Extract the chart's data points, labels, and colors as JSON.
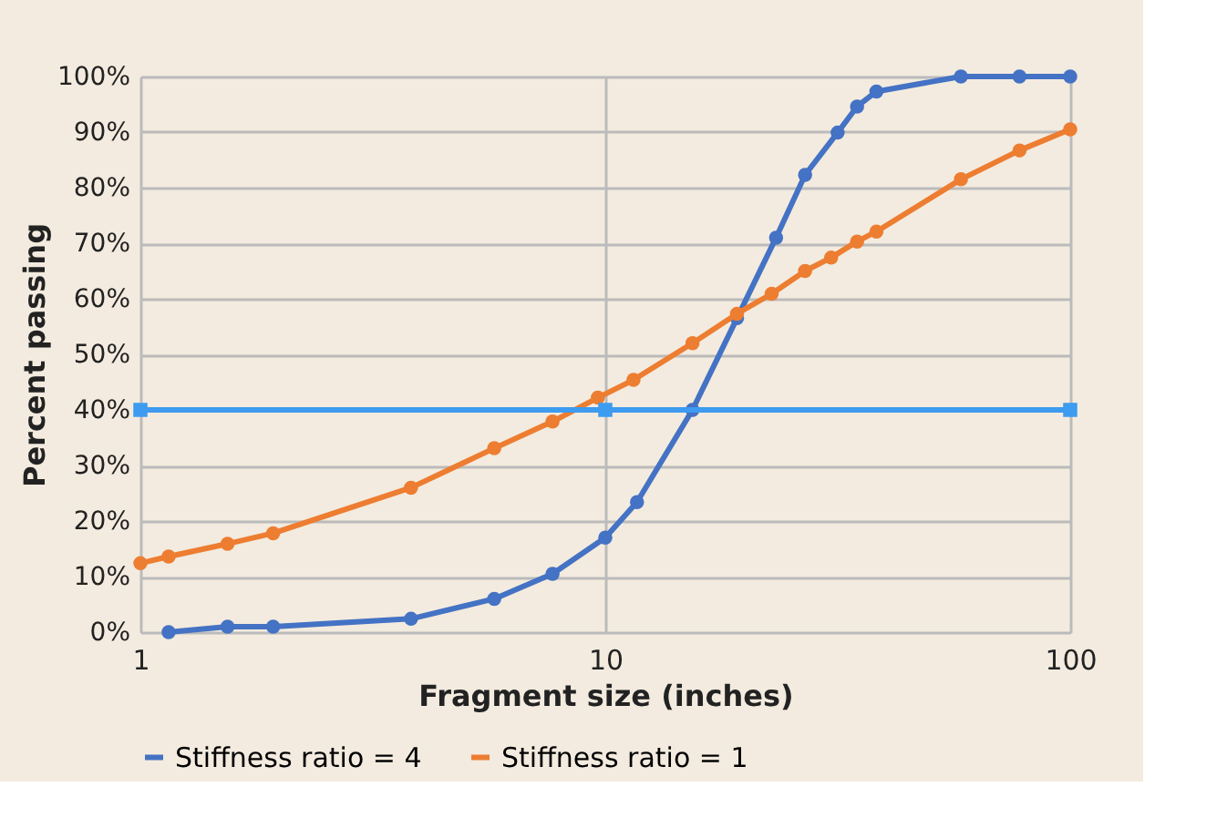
{
  "chart_data": {
    "type": "line",
    "xlabel": "Fragment size (inches)",
    "ylabel": "Percent passing",
    "log": "x",
    "xlim": [
      1,
      100
    ],
    "xticks": [
      1,
      10,
      100
    ],
    "ylim": [
      0,
      100
    ],
    "yticks": [
      {
        "value": 0,
        "label": "0%"
      },
      {
        "value": 10,
        "label": "10%"
      },
      {
        "value": 20,
        "label": "20%"
      },
      {
        "value": 30,
        "label": "30%"
      },
      {
        "value": 40,
        "label": "40%"
      },
      {
        "value": 50,
        "label": "50%"
      },
      {
        "value": 60,
        "label": "60%"
      },
      {
        "value": 70,
        "label": "70%"
      },
      {
        "value": 80,
        "label": "80%"
      },
      {
        "value": 90,
        "label": "90%"
      },
      {
        "value": 100,
        "label": "100%"
      }
    ],
    "grid": true,
    "legend": "bottom",
    "line_style": "solid",
    "series": [
      {
        "name": "Stiffness ratio = 4",
        "color": "#4472c4",
        "marker": "circle",
        "x": [
          1.15,
          1.54,
          1.93,
          3.82,
          5.77,
          7.7,
          10.0,
          11.7,
          15.4,
          19.2,
          23.3,
          26.9,
          31.6,
          34.8,
          38.3,
          58.2,
          77.8,
          100
        ],
        "values": [
          0,
          1,
          1,
          2.4,
          6.0,
          10.5,
          17.0,
          23.4,
          40,
          56.5,
          71,
          82.3,
          89.9,
          94.6,
          97.3,
          100,
          100,
          100
        ]
      },
      {
        "name": "Stiffness ratio = 1",
        "color": "#ed7d31",
        "marker": "circle",
        "x": [
          1,
          1.15,
          1.54,
          1.93,
          3.82,
          5.77,
          7.7,
          9.64,
          11.5,
          15.4,
          19.2,
          22.8,
          26.9,
          30.6,
          34.8,
          38.3,
          58.2,
          77.8,
          100
        ],
        "values": [
          12.4,
          13.6,
          15.9,
          17.8,
          26.0,
          33.1,
          37.9,
          42.2,
          45.4,
          52,
          57.3,
          60.9,
          65,
          67.4,
          70.3,
          72.1,
          81.5,
          86.7,
          90.5
        ]
      },
      {
        "color": "#3d9bf0",
        "marker": "square",
        "x": [
          1,
          10,
          100
        ],
        "values": [
          40,
          40,
          40
        ]
      }
    ]
  }
}
